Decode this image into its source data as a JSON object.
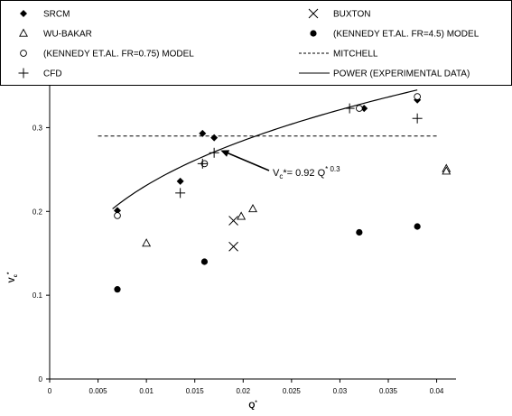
{
  "chart_data": {
    "type": "scatter",
    "title": "",
    "xlabel": "Q",
    "xlabel_sup": "*",
    "ylabel": "V",
    "ylabel_sub": "c",
    "ylabel_sup": "*",
    "xlim": [
      0,
      0.042
    ],
    "ylim": [
      0,
      0.35
    ],
    "xticks": [
      "0",
      "0.005",
      "0.01",
      "0.015",
      "0.02",
      "0.025",
      "0.03",
      "0.035",
      "0.04"
    ],
    "xtick_values": [
      0,
      0.005,
      0.01,
      0.015,
      0.02,
      0.025,
      0.03,
      0.035,
      0.04
    ],
    "yticks": [
      "0",
      "0.1",
      "0.2",
      "0.3"
    ],
    "ytick_values": [
      0,
      0.1,
      0.2,
      0.3
    ],
    "grid": false,
    "legend_position": "top, boxed above plot area",
    "annotation": {
      "lead": "V",
      "sub": "c",
      "mid": "*= 0.92 Q",
      "sup": "* 0.3",
      "arrow_to": [
        0.0172,
        0.275
      ]
    },
    "series": [
      {
        "name": "SRCM",
        "marker": "diamond",
        "points": [
          [
            0.007,
            0.201
          ],
          [
            0.0135,
            0.236
          ],
          [
            0.0158,
            0.293
          ],
          [
            0.017,
            0.288
          ],
          [
            0.0325,
            0.323
          ],
          [
            0.038,
            0.333
          ]
        ]
      },
      {
        "name": "BUXTON",
        "marker": "x",
        "points": [
          [
            0.019,
            0.189
          ],
          [
            0.019,
            0.158
          ]
        ]
      },
      {
        "name": "WU-BAKAR",
        "marker": "triangle",
        "points": [
          [
            0.01,
            0.162
          ],
          [
            0.0198,
            0.194
          ],
          [
            0.021,
            0.203
          ],
          [
            0.041,
            0.251
          ],
          [
            0.041,
            0.248
          ]
        ]
      },
      {
        "name": "(KENNEDY ET.AL. FR=4.5) MODEL",
        "marker": "filled-circle",
        "points": [
          [
            0.007,
            0.107
          ],
          [
            0.016,
            0.14
          ],
          [
            0.032,
            0.175
          ],
          [
            0.038,
            0.182
          ]
        ]
      },
      {
        "name": "(KENNEDY ET.AL. FR=0.75) MODEL",
        "marker": "open-circle",
        "points": [
          [
            0.007,
            0.195
          ],
          [
            0.016,
            0.257
          ],
          [
            0.032,
            0.323
          ],
          [
            0.038,
            0.337
          ]
        ]
      },
      {
        "name": "MITCHELL",
        "line": "dashed",
        "points": [
          [
            0.005,
            0.29
          ],
          [
            0.04,
            0.29
          ]
        ]
      },
      {
        "name": "CFD",
        "marker": "plus",
        "points": [
          [
            0.0135,
            0.222
          ],
          [
            0.0158,
            0.257
          ],
          [
            0.017,
            0.27
          ],
          [
            0.031,
            0.323
          ],
          [
            0.038,
            0.311
          ]
        ]
      },
      {
        "name": "POWER (EXPERIMENTAL DATA)",
        "line": "solid",
        "function": "0.92*x^0.3",
        "xrange": [
          0.0065,
          0.038
        ]
      }
    ]
  }
}
